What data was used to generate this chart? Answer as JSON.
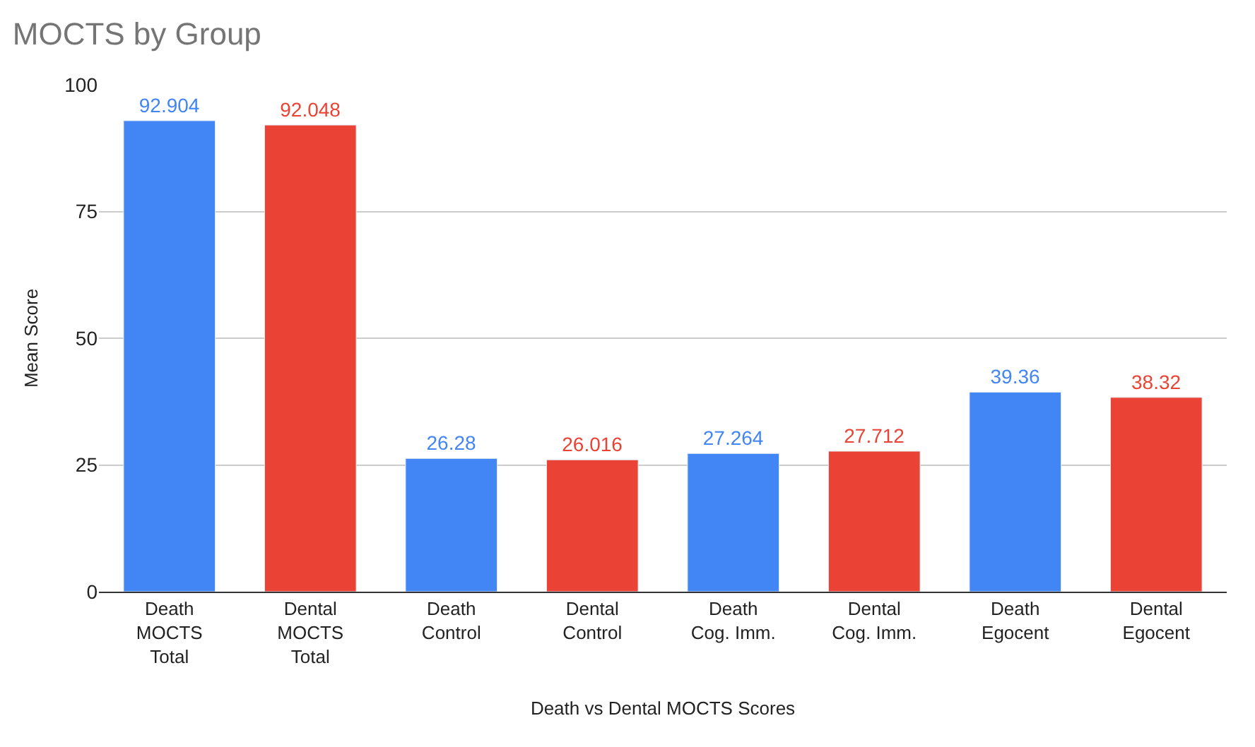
{
  "chart_data": {
    "type": "bar",
    "title": "MOCTS by Group",
    "xlabel": "Death vs Dental MOCTS Scores",
    "ylabel": "Mean Score",
    "categories": [
      "Death\nMOCTS\nTotal",
      "Dental\nMOCTS\nTotal",
      "Death\nControl",
      "Dental\nControl",
      "Death\nCog. Imm.",
      "Dental\nCog. Imm.",
      "Death\nEgocent",
      "Dental\nEgocent"
    ],
    "values": [
      92.904,
      92.048,
      26.28,
      26.016,
      27.264,
      27.712,
      39.36,
      38.32
    ],
    "colors": [
      "#4285f4",
      "#ea4335",
      "#4285f4",
      "#ea4335",
      "#4285f4",
      "#ea4335",
      "#4285f4",
      "#ea4335"
    ],
    "ylim": [
      0,
      100
    ],
    "yticks": [
      0,
      25,
      50,
      75,
      100
    ],
    "grid": "y",
    "data_labels": true
  }
}
